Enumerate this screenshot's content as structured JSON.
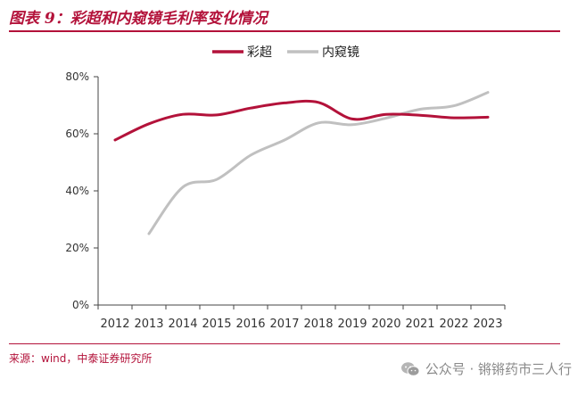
{
  "figure": {
    "title": "图表 9：彩超和内窥镜毛利率变化情况",
    "source": "来源：wind，中泰证券研究所",
    "watermark": "公众号 · 锵锵药市三人行"
  },
  "colors": {
    "accent": "#b3123a",
    "series_1": "#b3123a",
    "series_2": "#c0c0c0"
  },
  "chart_data": {
    "type": "line",
    "title": "图表 9：彩超和内窥镜毛利率变化情况",
    "xlabel": "",
    "ylabel": "",
    "ylim": [
      0,
      80
    ],
    "yticks": [
      0,
      20,
      40,
      60,
      80
    ],
    "ytick_labels": [
      "0%",
      "20%",
      "40%",
      "60%",
      "80%"
    ],
    "categories": [
      "2012",
      "2013",
      "2014",
      "2015",
      "2016",
      "2017",
      "2018",
      "2019",
      "2020",
      "2021",
      "2022",
      "2023"
    ],
    "legend_position": "top-center",
    "grid": false,
    "series": [
      {
        "name": "彩超",
        "values": [
          57.8,
          63.5,
          66.8,
          66.6,
          69.0,
          70.8,
          71.0,
          65.2,
          66.8,
          66.5,
          65.6,
          65.8
        ]
      },
      {
        "name": "内窥镜",
        "values": [
          null,
          25.0,
          41.3,
          44.0,
          52.5,
          57.8,
          63.8,
          63.2,
          65.5,
          68.6,
          69.8,
          74.5
        ]
      }
    ]
  }
}
